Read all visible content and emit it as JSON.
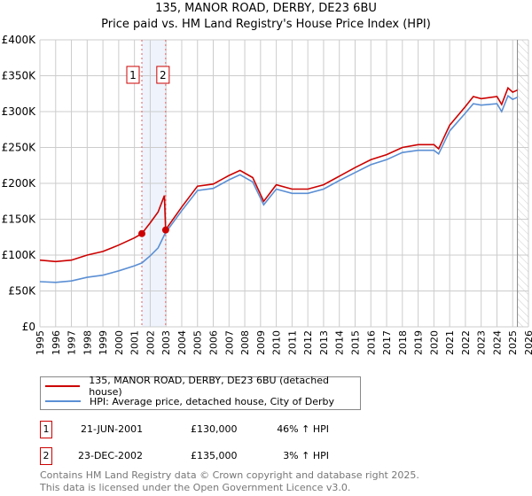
{
  "chart_data": {
    "type": "line",
    "title": "135, MANOR ROAD, DERBY, DE23 6BU",
    "subtitle": "Price paid vs. HM Land Registry's House Price Index (HPI)",
    "xlabel": "",
    "ylabel": "",
    "xlim": [
      1995,
      2026
    ],
    "ylim": [
      0,
      400000
    ],
    "y_ticks": [
      0,
      50000,
      100000,
      150000,
      200000,
      250000,
      300000,
      350000,
      400000
    ],
    "y_tick_labels": [
      "£0",
      "£50K",
      "£100K",
      "£150K",
      "£200K",
      "£250K",
      "£300K",
      "£350K",
      "£400K"
    ],
    "x_ticks": [
      1995,
      1996,
      1997,
      1998,
      1999,
      2000,
      2001,
      2002,
      2003,
      2004,
      2005,
      2006,
      2007,
      2008,
      2009,
      2010,
      2011,
      2012,
      2013,
      2014,
      2015,
      2016,
      2017,
      2018,
      2019,
      2020,
      2021,
      2022,
      2023,
      2024,
      2025,
      2026
    ],
    "grid": true,
    "x": [
      1995,
      1996,
      1997,
      1998,
      1999,
      2000,
      2001,
      2001.47,
      2002,
      2002.5,
      2002.9,
      2002.98,
      2003,
      2004,
      2005,
      2006,
      2007,
      2007.7,
      2008.5,
      2009.2,
      2010,
      2011,
      2012,
      2013,
      2014,
      2015,
      2016,
      2017,
      2018,
      2019,
      2020,
      2020.3,
      2021,
      2022,
      2022.5,
      2023,
      2024,
      2024.3,
      2024.7,
      2025,
      2025.3
    ],
    "series": [
      {
        "name": "135, MANOR ROAD, DERBY, DE23 6BU (detached house)",
        "color": "#cc0000",
        "values": [
          93000,
          91000,
          93000,
          100000,
          105000,
          114000,
          124000,
          130000,
          145000,
          160000,
          183000,
          135000,
          136000,
          167000,
          196000,
          199000,
          211000,
          218000,
          208000,
          175000,
          198000,
          192000,
          192000,
          198000,
          210000,
          222000,
          233000,
          240000,
          250000,
          254000,
          254000,
          248000,
          281000,
          307000,
          321000,
          318000,
          321000,
          310000,
          333000,
          327000,
          330000
        ]
      },
      {
        "name": "HPI: Average price, detached house, City of Derby",
        "color": "#5b8fd4",
        "values": [
          63000,
          62000,
          64000,
          69000,
          72000,
          78000,
          85000,
          89000,
          99000,
          110000,
          128000,
          131000,
          132000,
          162000,
          190000,
          193000,
          205000,
          212000,
          202000,
          170000,
          192000,
          186000,
          186000,
          192000,
          204000,
          215000,
          226000,
          233000,
          243000,
          246000,
          246000,
          241000,
          273000,
          298000,
          311000,
          309000,
          311000,
          300000,
          322000,
          317000,
          320000
        ]
      }
    ],
    "sales": [
      {
        "label": "1",
        "x": 2001.47,
        "value": 130000,
        "date": "21-JUN-2001",
        "price": "£130,000",
        "hpi": "46% ↑ HPI"
      },
      {
        "label": "2",
        "x": 2002.98,
        "value": 135000,
        "date": "23-DEC-2002",
        "price": "£135,000",
        "hpi": "3% ↑ HPI"
      }
    ],
    "forecast_start": 2025.3,
    "legend_placement": "below"
  },
  "footer": {
    "line1": "Contains HM Land Registry data © Crown copyright and database right 2025.",
    "line2": "This data is licensed under the Open Government Licence v3.0."
  }
}
